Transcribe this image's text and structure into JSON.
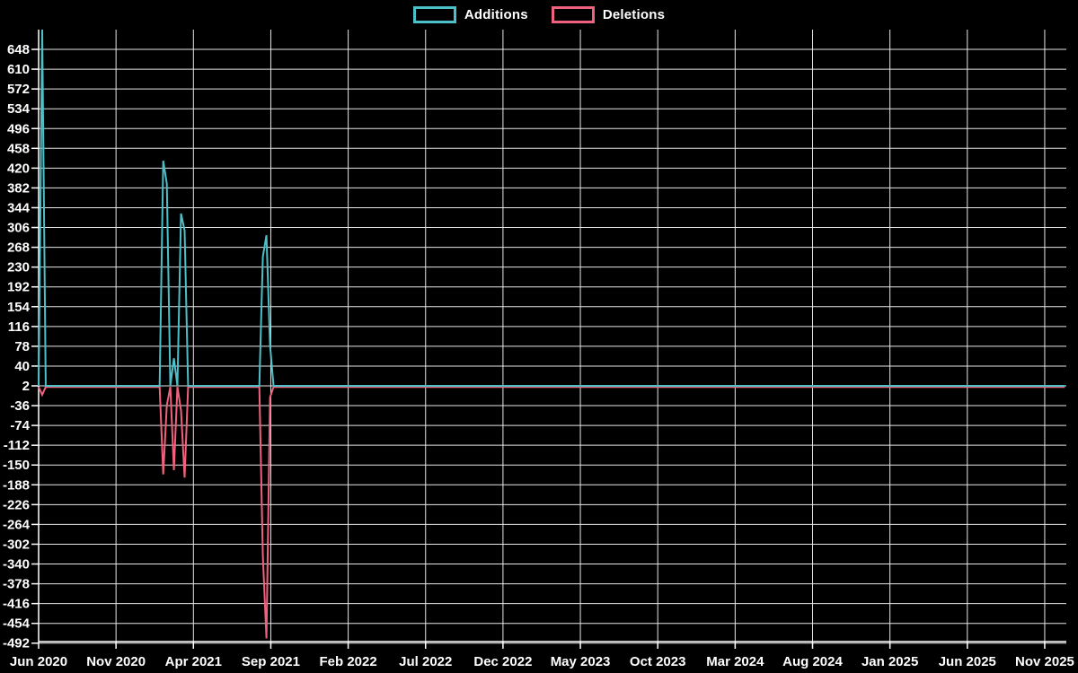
{
  "chart": {
    "background": "#000000",
    "text_color": "#ffffff",
    "grid_color": "#e6e6e6",
    "axis_color": "#ffffff"
  },
  "chart_data": {
    "type": "line",
    "title": "",
    "xlabel": "",
    "ylabel": "",
    "grid": true,
    "legend_position": "top-center",
    "x_tick_labels": [
      "Jun 2020",
      "Nov 2020",
      "Apr 2021",
      "Sep 2021",
      "Feb 2022",
      "Jul 2022",
      "Dec 2022",
      "May 2023",
      "Oct 2023",
      "Mar 2024",
      "Aug 2024",
      "Jan 2025",
      "Jun 2025",
      "Nov 2025"
    ],
    "y_ticks": [
      648,
      610,
      572,
      534,
      496,
      458,
      420,
      382,
      344,
      306,
      268,
      230,
      192,
      154,
      116,
      78,
      40,
      2,
      -36,
      -74,
      -112,
      -150,
      -188,
      -226,
      -264,
      -302,
      -340,
      -378,
      -416,
      -454,
      -492
    ],
    "ylim": [
      -492,
      686
    ],
    "x_range": {
      "start": "2020-06-01",
      "end": "2025-12-10",
      "interval": "weekly"
    },
    "series": [
      {
        "name": "Additions",
        "color": "#4cbfc8",
        "baseline": 2,
        "spikes": [
          {
            "date": "2020-06-07",
            "value": 690,
            "clipped_at_top": true
          },
          {
            "date": "2021-01-31",
            "value": 434
          },
          {
            "date": "2021-02-07",
            "value": 390
          },
          {
            "date": "2021-02-21",
            "value": 55
          },
          {
            "date": "2021-03-07",
            "value": 333
          },
          {
            "date": "2021-03-14",
            "value": 300
          },
          {
            "date": "2021-08-15",
            "value": 250
          },
          {
            "date": "2021-08-22",
            "value": 291
          },
          {
            "date": "2021-08-29",
            "value": 80
          }
        ]
      },
      {
        "name": "Deletions",
        "color": "#ef617c",
        "baseline": 0,
        "spikes": [
          {
            "date": "2020-06-07",
            "value": -15
          },
          {
            "date": "2021-01-31",
            "value": -168
          },
          {
            "date": "2021-02-07",
            "value": -35
          },
          {
            "date": "2021-02-21",
            "value": -160
          },
          {
            "date": "2021-03-07",
            "value": -45
          },
          {
            "date": "2021-03-14",
            "value": -174
          },
          {
            "date": "2021-08-15",
            "value": -325
          },
          {
            "date": "2021-08-22",
            "value": -483
          },
          {
            "date": "2021-08-29",
            "value": -20
          }
        ]
      }
    ]
  }
}
